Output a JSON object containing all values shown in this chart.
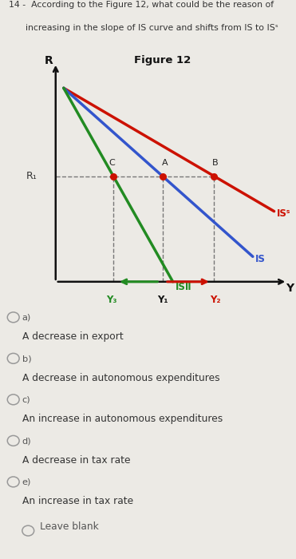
{
  "bg_color": "#eceae5",
  "question_line1": "14 -  According to the Figure 12, what could be the reason of",
  "question_line2": "      increasing in the slope of IS curve and shifts from IS to ISˢ",
  "figure_title": "Figure 12",
  "options": [
    {
      "label": "a)",
      "text": "A decrease in export"
    },
    {
      "label": "b)",
      "text": "A decrease in autonomous expenditures"
    },
    {
      "label": "c)",
      "text": "An increase in autonomous expenditures"
    },
    {
      "label": "d)",
      "text": "A decrease in tax rate"
    },
    {
      "label": "e)",
      "text": "An increase in tax rate"
    }
  ],
  "leave_blank": "Leave blank",
  "R_label": "R",
  "R1_label": "R₁",
  "Y_label": "Y",
  "Y3_label": "Y₃",
  "Y1_label": "Y₁",
  "Y2_label": "Y₂",
  "IS_red_label": "ISˢ",
  "IS_blue_label": "IS",
  "IS_green_label": "ISⅡ",
  "A_label": "A",
  "B_label": "B",
  "C_label": "C",
  "red_color": "#cc1100",
  "blue_color": "#3355cc",
  "green_color": "#228B22",
  "dot_color": "#cc1100",
  "axis_color": "#111111",
  "dash_color": "#777777",
  "text_color": "#333333",
  "label_color": "#555555"
}
